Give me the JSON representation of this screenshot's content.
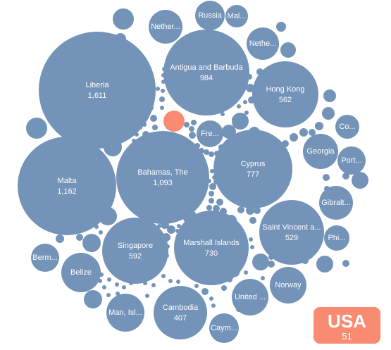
{
  "chart_data": {
    "type": "bubble",
    "title": "",
    "series": [
      {
        "category": "Liberia",
        "label": "Liberia",
        "value": 1611
      },
      {
        "category": "Malta",
        "label": "Malta",
        "value": 1162
      },
      {
        "category": "Bahamas, The",
        "label": "Bahamas, The",
        "value": 1093
      },
      {
        "category": "Antigua and Barbuda",
        "label": "Antigua and Barbuda",
        "value": 984
      },
      {
        "category": "Cyprus",
        "label": "Cyprus",
        "value": 777
      },
      {
        "category": "Marshall Islands",
        "label": "Marshall Islands",
        "value": 730
      },
      {
        "category": "Singapore",
        "label": "Singapore",
        "value": 592
      },
      {
        "category": "Hong Kong",
        "label": "Hong Kong",
        "value": 562
      },
      {
        "category": "Saint Vincent a...",
        "label": "Saint Vincent a...",
        "value": 529
      },
      {
        "category": "Cambodia",
        "label": "Cambodia",
        "value": 407
      },
      {
        "category": "Man, Isl...",
        "label": "Man, Isl..."
      },
      {
        "category": "Belize",
        "label": "Belize"
      },
      {
        "category": "Norway",
        "label": "Norway"
      },
      {
        "category": "United ...",
        "label": "United ..."
      },
      {
        "category": "Georgia",
        "label": "Georgia"
      },
      {
        "category": "Gibralt...",
        "label": "Gibralt..."
      },
      {
        "category": "Nether...",
        "label": "Nether..."
      },
      {
        "category": "Nethe...",
        "label": "Nethe..."
      },
      {
        "category": "Russia",
        "label": "Russia"
      },
      {
        "category": "Fre...",
        "label": "Fre..."
      },
      {
        "category": "Berm...",
        "label": "Berm..."
      },
      {
        "category": "Cay...",
        "label": "Caym..."
      },
      {
        "category": "Phi...",
        "label": "Phi..."
      },
      {
        "category": "Port...",
        "label": "Port..."
      },
      {
        "category": "Co...",
        "label": "Co..."
      },
      {
        "category": "Mal...",
        "label": "Mal..."
      },
      {
        "category": "",
        "label": "",
        "count": 0
      }
    ],
    "highlight": {
      "category": "USA",
      "label": "USA",
      "value": 51
    },
    "colors": {
      "bubble": "#7393b8",
      "highlight": "#f98b73",
      "text": "#ffffff",
      "background": "#ffffff"
    }
  }
}
